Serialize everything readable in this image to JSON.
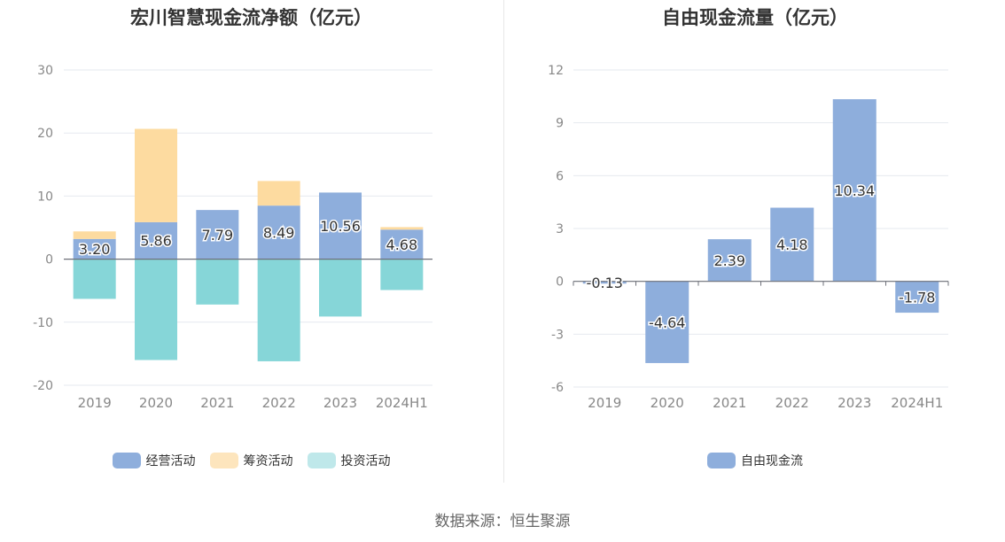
{
  "chart_data": [
    {
      "type": "bar",
      "title": "宏川智慧现金流净额（亿元）",
      "categories": [
        "2019",
        "2020",
        "2021",
        "2022",
        "2023",
        "2024H1"
      ],
      "ylim": [
        -20,
        30
      ],
      "yticks": [
        30,
        20,
        10,
        0,
        -10,
        -20
      ],
      "stacked": true,
      "series": [
        {
          "name": "经营活动",
          "color": "#8eaedc",
          "values": [
            3.2,
            5.86,
            7.79,
            8.49,
            10.56,
            4.68
          ],
          "labels": [
            "3.20",
            "5.86",
            "7.79",
            "8.49",
            "10.56",
            "4.68"
          ]
        },
        {
          "name": "筹资活动",
          "color": "#fddba0",
          "values": [
            1.2,
            14.8,
            0,
            3.9,
            0,
            0.4
          ]
        },
        {
          "name": "投资活动",
          "color": "#86d6d8",
          "values": [
            -6.3,
            -16.0,
            -7.2,
            -16.2,
            -9.1,
            -4.9
          ]
        }
      ],
      "legend": "bottom",
      "grid": true
    },
    {
      "type": "bar",
      "title": "自由现金流量（亿元）",
      "categories": [
        "2019",
        "2020",
        "2021",
        "2022",
        "2023",
        "2024H1"
      ],
      "ylim": [
        -6,
        12
      ],
      "yticks": [
        12,
        9,
        6,
        3,
        0,
        -3,
        -6
      ],
      "series": [
        {
          "name": "自由现金流",
          "color": "#8eaedc",
          "values": [
            -0.13,
            -4.64,
            2.39,
            4.18,
            10.34,
            -1.78
          ],
          "labels": [
            "-0.13",
            "-4.64",
            "2.39",
            "4.18",
            "10.34",
            "-1.78"
          ]
        }
      ],
      "legend": "bottom",
      "grid": true
    }
  ],
  "legend_left": [
    {
      "label": "经营活动",
      "color": "#8eaedc"
    },
    {
      "label": "筹资活动",
      "color": "#fde5bd"
    },
    {
      "label": "投资活动",
      "color": "#bfe8ea"
    }
  ],
  "legend_right": [
    {
      "label": "自由现金流",
      "color": "#8eaedc"
    }
  ],
  "source": "数据来源：恒生聚源"
}
